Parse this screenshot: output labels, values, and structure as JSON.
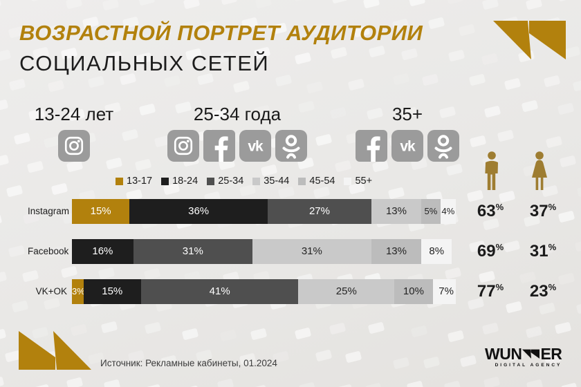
{
  "title": {
    "line1": "ВОЗРАСТНОЙ ПОРТРЕТ АУДИТОРИИ",
    "line2": "СОЦИАЛЬНЫХ СЕТЕЙ"
  },
  "age_groups": [
    {
      "label": "13-24 лет",
      "icons": [
        "instagram"
      ]
    },
    {
      "label": "25-34 года",
      "icons": [
        "instagram",
        "facebook",
        "vk",
        "ok"
      ]
    },
    {
      "label": "35+",
      "icons": [
        "facebook",
        "vk",
        "ok"
      ]
    }
  ],
  "legend": [
    {
      "label": "13-17",
      "color": "#b2810d"
    },
    {
      "label": "18-24",
      "color": "#1e1e1e"
    },
    {
      "label": "25-34",
      "color": "#4f4f4f"
    },
    {
      "label": "35-44",
      "color": "#c9c9c9"
    },
    {
      "label": "45-54",
      "color": "#bcbcbc"
    },
    {
      "label": "55+",
      "color": "#f4f4f4"
    }
  ],
  "chart_data": {
    "type": "bar",
    "orientation": "horizontal-stacked",
    "unit": "%",
    "categories": [
      "Instagram",
      "Facebook",
      "VK+OK"
    ],
    "series": [
      {
        "name": "13-17",
        "values": [
          15,
          0,
          3
        ]
      },
      {
        "name": "18-24",
        "values": [
          36,
          16,
          15
        ]
      },
      {
        "name": "25-34",
        "values": [
          27,
          31,
          41
        ]
      },
      {
        "name": "35-44",
        "values": [
          13,
          31,
          25
        ]
      },
      {
        "name": "45-54",
        "values": [
          5,
          13,
          10
        ]
      },
      {
        "name": "55+",
        "values": [
          4,
          8,
          7
        ]
      }
    ]
  },
  "gender": {
    "unit": "%",
    "rows": [
      {
        "male": 63,
        "female": 37
      },
      {
        "male": 69,
        "female": 31
      },
      {
        "male": 77,
        "female": 23
      }
    ]
  },
  "source": "Источник: Рекламные кабинеты, 01.2024",
  "logo": {
    "prefix": "WUN",
    "suffix": "ER",
    "subtitle": "DIGITAL AGENCY"
  },
  "colors": {
    "accent": "#b2810d",
    "figure": "#9e7d31",
    "icon_bg": "#9b9b9b",
    "dark_text": "#242424",
    "light_text": "#ffffff"
  }
}
